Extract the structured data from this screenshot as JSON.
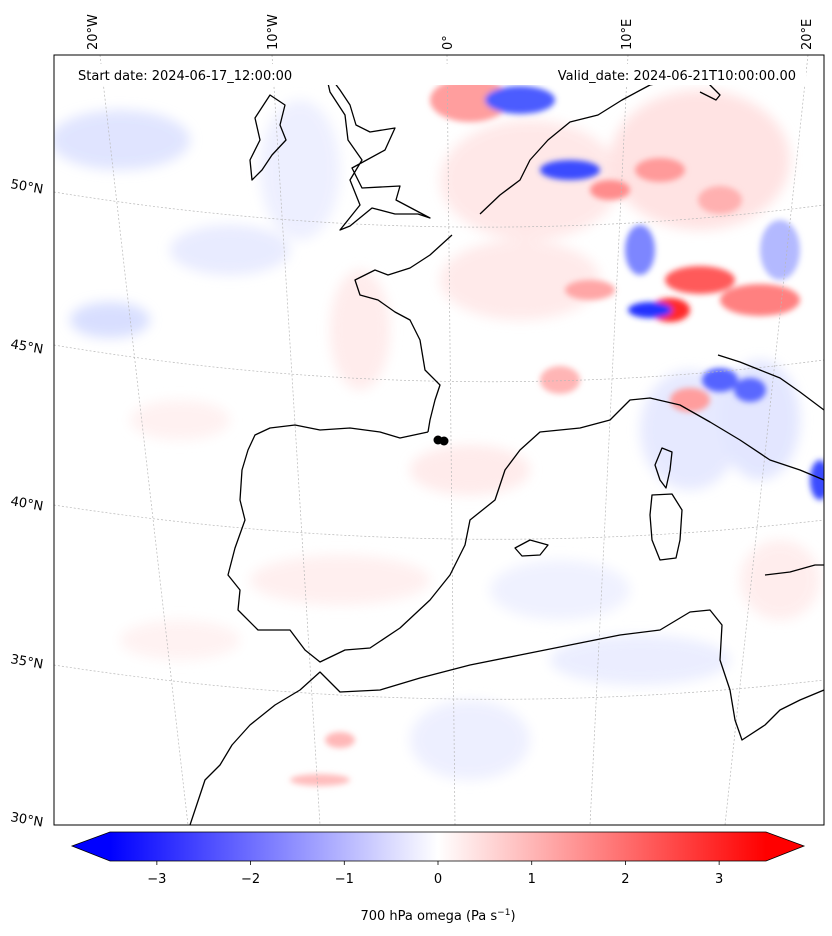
{
  "header": {
    "start_date": "Start date: 2024-06-17_12:00:00",
    "valid_date": "Valid_date: 2024-06-21T10:00:00.00"
  },
  "map": {
    "projection": "conic",
    "lon_labels": [
      "20°W",
      "10°W",
      "0°",
      "10°E",
      "20°E"
    ],
    "lat_labels": [
      "50°N",
      "45°N",
      "40°N",
      "35°N",
      "30°N"
    ],
    "gridlines": "dotted",
    "marker": "black dot"
  },
  "colorbar": {
    "label_prefix": "700 hPa omega (Pa s",
    "label_exp": "−1",
    "label_suffix": ")",
    "ticks": [
      "−3",
      "−2",
      "−1",
      "0",
      "1",
      "2",
      "3"
    ],
    "tick_values": [
      -3,
      -2,
      -1,
      0,
      1,
      2,
      3
    ],
    "range": [
      -3.5,
      3.5
    ],
    "extend": "both",
    "colormap": "bwr",
    "color_min": "#0000ff",
    "color_mid": "#ffffff",
    "color_max": "#ff0000"
  }
}
